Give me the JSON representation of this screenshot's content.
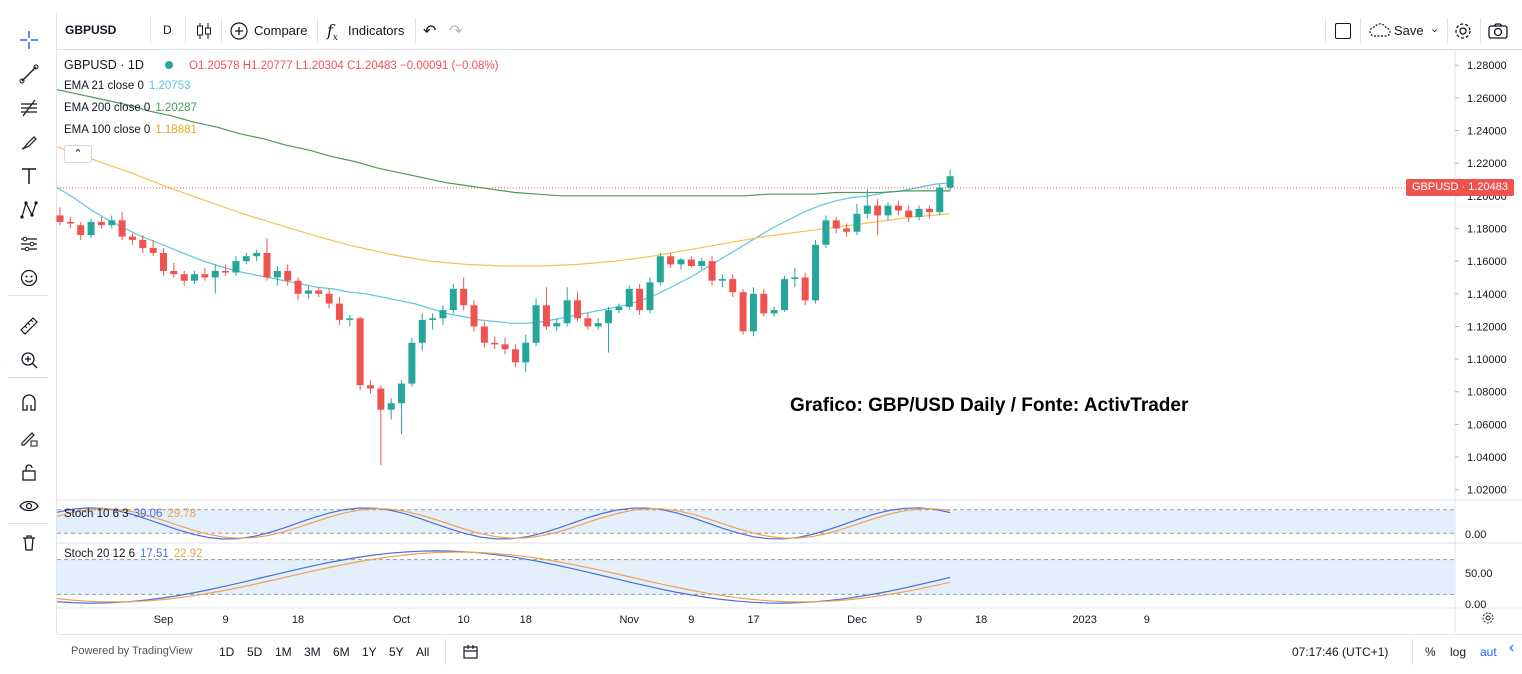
{
  "toolbar": {
    "symbol": "GBPUSD",
    "interval": "D",
    "compare": "Compare",
    "indicators": "Indicators",
    "save": "Save"
  },
  "legend": {
    "title": "GBPUSD · 1D",
    "ohlc": "O1.20578 H1.20777 L1.20304 C1.20483 −0.00091 (−0.08%)",
    "ema21_label": "EMA 21 close 0",
    "ema21_value": "1.20753",
    "ema200_label": "EMA 200 close 0",
    "ema200_value": "1.20287",
    "ema100_label": "EMA 100 close 0",
    "ema100_value": "1.18881",
    "stoch1_label": "Stoch 10 6 3",
    "stoch1_k": "39.06",
    "stoch1_d": "29.78",
    "stoch2_label": "Stoch 20 12 6",
    "stoch2_k": "17.51",
    "stoch2_d": "22.92"
  },
  "annotation": "Grafico: GBP/USD Daily / Fonte: ActivTrader",
  "price_tag": "GBPUSD · 1.20483",
  "bottom": {
    "powered": "Powered by TradingView",
    "ranges": [
      "1D",
      "5D",
      "1M",
      "3M",
      "6M",
      "1Y",
      "5Y",
      "All"
    ],
    "time": "07:17:46 (UTC+1)",
    "percent": "%",
    "log": "log",
    "auto": "aut"
  },
  "colors": {
    "up": "#26a69a",
    "down": "#ef5350",
    "ema21": "#5fc6dc",
    "ema200": "#4a9a5a",
    "ema100": "#f5c250",
    "stoch_k": "#4a6fd8",
    "stoch_d": "#f0a350"
  },
  "chart_data": {
    "type": "candlestick",
    "title": "GBPUSD · 1D",
    "ylim": [
      1.0137,
      1.2893
    ],
    "y_ticks": [
      "1.28000",
      "1.26000",
      "1.24000",
      "1.22000",
      "1.20000",
      "1.18000",
      "1.16000",
      "1.14000",
      "1.12000",
      "1.10000",
      "1.08000",
      "1.06000",
      "1.04000",
      "1.02000"
    ],
    "y_tick_values": [
      1.28,
      1.26,
      1.24,
      1.22,
      1.2,
      1.18,
      1.16,
      1.14,
      1.12,
      1.1,
      1.08,
      1.06,
      1.04,
      1.02
    ],
    "x_ticks": [
      {
        "label": "Sep",
        "index": 10
      },
      {
        "label": "9",
        "index": 16
      },
      {
        "label": "18",
        "index": 23
      },
      {
        "label": "Oct",
        "index": 33
      },
      {
        "label": "10",
        "index": 39
      },
      {
        "label": "18",
        "index": 45
      },
      {
        "label": "Nov",
        "index": 55
      },
      {
        "label": "9",
        "index": 61
      },
      {
        "label": "17",
        "index": 67
      },
      {
        "label": "Dec",
        "index": 77
      },
      {
        "label": "9",
        "index": 83
      },
      {
        "label": "18",
        "index": 89
      },
      {
        "label": "2023",
        "index": 99
      },
      {
        "label": "9",
        "index": 105
      }
    ],
    "candles": [
      {
        "o": 1.188,
        "h": 1.193,
        "l": 1.182,
        "c": 1.184
      },
      {
        "o": 1.184,
        "h": 1.187,
        "l": 1.18,
        "c": 1.183
      },
      {
        "o": 1.182,
        "h": 1.184,
        "l": 1.173,
        "c": 1.176
      },
      {
        "o": 1.176,
        "h": 1.186,
        "l": 1.174,
        "c": 1.184
      },
      {
        "o": 1.184,
        "h": 1.187,
        "l": 1.18,
        "c": 1.182
      },
      {
        "o": 1.182,
        "h": 1.188,
        "l": 1.18,
        "c": 1.185
      },
      {
        "o": 1.185,
        "h": 1.19,
        "l": 1.173,
        "c": 1.175
      },
      {
        "o": 1.175,
        "h": 1.177,
        "l": 1.17,
        "c": 1.173
      },
      {
        "o": 1.173,
        "h": 1.176,
        "l": 1.165,
        "c": 1.168
      },
      {
        "o": 1.168,
        "h": 1.173,
        "l": 1.163,
        "c": 1.165
      },
      {
        "o": 1.165,
        "h": 1.168,
        "l": 1.151,
        "c": 1.154
      },
      {
        "o": 1.154,
        "h": 1.159,
        "l": 1.15,
        "c": 1.152
      },
      {
        "o": 1.152,
        "h": 1.154,
        "l": 1.145,
        "c": 1.148
      },
      {
        "o": 1.148,
        "h": 1.154,
        "l": 1.146,
        "c": 1.152
      },
      {
        "o": 1.152,
        "h": 1.156,
        "l": 1.148,
        "c": 1.15
      },
      {
        "o": 1.15,
        "h": 1.158,
        "l": 1.14,
        "c": 1.154
      },
      {
        "o": 1.154,
        "h": 1.158,
        "l": 1.151,
        "c": 1.153
      },
      {
        "o": 1.153,
        "h": 1.163,
        "l": 1.151,
        "c": 1.16
      },
      {
        "o": 1.16,
        "h": 1.165,
        "l": 1.158,
        "c": 1.163
      },
      {
        "o": 1.163,
        "h": 1.167,
        "l": 1.16,
        "c": 1.165
      },
      {
        "o": 1.165,
        "h": 1.174,
        "l": 1.148,
        "c": 1.15
      },
      {
        "o": 1.15,
        "h": 1.157,
        "l": 1.145,
        "c": 1.154
      },
      {
        "o": 1.154,
        "h": 1.158,
        "l": 1.145,
        "c": 1.148
      },
      {
        "o": 1.148,
        "h": 1.15,
        "l": 1.136,
        "c": 1.14
      },
      {
        "o": 1.14,
        "h": 1.145,
        "l": 1.137,
        "c": 1.142
      },
      {
        "o": 1.142,
        "h": 1.144,
        "l": 1.138,
        "c": 1.14
      },
      {
        "o": 1.14,
        "h": 1.143,
        "l": 1.131,
        "c": 1.134
      },
      {
        "o": 1.134,
        "h": 1.138,
        "l": 1.121,
        "c": 1.124
      },
      {
        "o": 1.124,
        "h": 1.127,
        "l": 1.12,
        "c": 1.125
      },
      {
        "o": 1.125,
        "h": 1.126,
        "l": 1.081,
        "c": 1.084
      },
      {
        "o": 1.084,
        "h": 1.087,
        "l": 1.079,
        "c": 1.082
      },
      {
        "o": 1.082,
        "h": 1.084,
        "l": 1.035,
        "c": 1.069
      },
      {
        "o": 1.069,
        "h": 1.076,
        "l": 1.063,
        "c": 1.073
      },
      {
        "o": 1.073,
        "h": 1.087,
        "l": 1.054,
        "c": 1.085
      },
      {
        "o": 1.085,
        "h": 1.113,
        "l": 1.083,
        "c": 1.11
      },
      {
        "o": 1.11,
        "h": 1.128,
        "l": 1.105,
        "c": 1.124
      },
      {
        "o": 1.124,
        "h": 1.128,
        "l": 1.118,
        "c": 1.125
      },
      {
        "o": 1.125,
        "h": 1.133,
        "l": 1.121,
        "c": 1.13
      },
      {
        "o": 1.13,
        "h": 1.146,
        "l": 1.128,
        "c": 1.143
      },
      {
        "o": 1.143,
        "h": 1.15,
        "l": 1.13,
        "c": 1.133
      },
      {
        "o": 1.133,
        "h": 1.136,
        "l": 1.117,
        "c": 1.12
      },
      {
        "o": 1.12,
        "h": 1.123,
        "l": 1.107,
        "c": 1.11
      },
      {
        "o": 1.11,
        "h": 1.114,
        "l": 1.106,
        "c": 1.109
      },
      {
        "o": 1.109,
        "h": 1.113,
        "l": 1.103,
        "c": 1.106
      },
      {
        "o": 1.106,
        "h": 1.109,
        "l": 1.095,
        "c": 1.098
      },
      {
        "o": 1.098,
        "h": 1.115,
        "l": 1.092,
        "c": 1.11
      },
      {
        "o": 1.11,
        "h": 1.137,
        "l": 1.108,
        "c": 1.133
      },
      {
        "o": 1.133,
        "h": 1.144,
        "l": 1.118,
        "c": 1.12
      },
      {
        "o": 1.12,
        "h": 1.125,
        "l": 1.117,
        "c": 1.122
      },
      {
        "o": 1.122,
        "h": 1.144,
        "l": 1.12,
        "c": 1.136
      },
      {
        "o": 1.136,
        "h": 1.141,
        "l": 1.123,
        "c": 1.125
      },
      {
        "o": 1.125,
        "h": 1.128,
        "l": 1.118,
        "c": 1.12
      },
      {
        "o": 1.12,
        "h": 1.125,
        "l": 1.118,
        "c": 1.122
      },
      {
        "o": 1.122,
        "h": 1.132,
        "l": 1.104,
        "c": 1.13
      },
      {
        "o": 1.13,
        "h": 1.134,
        "l": 1.128,
        "c": 1.132
      },
      {
        "o": 1.132,
        "h": 1.145,
        "l": 1.13,
        "c": 1.143
      },
      {
        "o": 1.143,
        "h": 1.146,
        "l": 1.127,
        "c": 1.13
      },
      {
        "o": 1.13,
        "h": 1.15,
        "l": 1.128,
        "c": 1.147
      },
      {
        "o": 1.147,
        "h": 1.165,
        "l": 1.145,
        "c": 1.163
      },
      {
        "o": 1.163,
        "h": 1.165,
        "l": 1.156,
        "c": 1.158
      },
      {
        "o": 1.158,
        "h": 1.162,
        "l": 1.155,
        "c": 1.161
      },
      {
        "o": 1.161,
        "h": 1.163,
        "l": 1.156,
        "c": 1.157
      },
      {
        "o": 1.157,
        "h": 1.162,
        "l": 1.155,
        "c": 1.16
      },
      {
        "o": 1.16,
        "h": 1.163,
        "l": 1.145,
        "c": 1.148
      },
      {
        "o": 1.148,
        "h": 1.152,
        "l": 1.144,
        "c": 1.149
      },
      {
        "o": 1.149,
        "h": 1.152,
        "l": 1.138,
        "c": 1.141
      },
      {
        "o": 1.141,
        "h": 1.143,
        "l": 1.115,
        "c": 1.117
      },
      {
        "o": 1.117,
        "h": 1.144,
        "l": 1.114,
        "c": 1.14
      },
      {
        "o": 1.14,
        "h": 1.143,
        "l": 1.126,
        "c": 1.128
      },
      {
        "o": 1.128,
        "h": 1.132,
        "l": 1.126,
        "c": 1.13
      },
      {
        "o": 1.13,
        "h": 1.151,
        "l": 1.129,
        "c": 1.149
      },
      {
        "o": 1.149,
        "h": 1.156,
        "l": 1.144,
        "c": 1.15
      },
      {
        "o": 1.15,
        "h": 1.153,
        "l": 1.133,
        "c": 1.136
      },
      {
        "o": 1.136,
        "h": 1.173,
        "l": 1.134,
        "c": 1.17
      },
      {
        "o": 1.17,
        "h": 1.188,
        "l": 1.168,
        "c": 1.185
      },
      {
        "o": 1.185,
        "h": 1.187,
        "l": 1.177,
        "c": 1.18
      },
      {
        "o": 1.18,
        "h": 1.183,
        "l": 1.175,
        "c": 1.178
      },
      {
        "o": 1.178,
        "h": 1.195,
        "l": 1.176,
        "c": 1.189
      },
      {
        "o": 1.189,
        "h": 1.204,
        "l": 1.186,
        "c": 1.194
      },
      {
        "o": 1.194,
        "h": 1.198,
        "l": 1.176,
        "c": 1.188
      },
      {
        "o": 1.188,
        "h": 1.196,
        "l": 1.185,
        "c": 1.194
      },
      {
        "o": 1.194,
        "h": 1.197,
        "l": 1.188,
        "c": 1.191
      },
      {
        "o": 1.191,
        "h": 1.194,
        "l": 1.184,
        "c": 1.187
      },
      {
        "o": 1.187,
        "h": 1.194,
        "l": 1.185,
        "c": 1.192
      },
      {
        "o": 1.192,
        "h": 1.194,
        "l": 1.186,
        "c": 1.19
      },
      {
        "o": 1.19,
        "h": 1.207,
        "l": 1.188,
        "c": 1.205
      },
      {
        "o": 1.205,
        "h": 1.216,
        "l": 1.203,
        "c": 1.212
      }
    ],
    "series": [
      {
        "name": "EMA 21 close 0",
        "values": [
          1.205,
          1.199,
          1.192,
          1.186,
          1.181,
          1.176,
          1.172,
          1.168,
          1.164,
          1.16,
          1.157,
          1.154,
          1.152,
          1.15,
          1.148,
          1.146,
          1.144,
          1.143,
          1.141,
          1.14,
          1.138,
          1.136,
          1.134,
          1.131,
          1.128,
          1.126,
          1.124,
          1.123,
          1.122,
          1.122,
          1.123,
          1.125,
          1.127,
          1.129,
          1.131,
          1.133,
          1.136,
          1.14,
          1.145,
          1.15,
          1.156,
          1.162,
          1.168,
          1.174,
          1.18,
          1.185,
          1.19,
          1.194,
          1.197,
          1.199,
          1.2,
          1.202,
          1.203,
          1.205,
          1.207,
          1.208
        ]
      },
      {
        "name": "EMA 200 close 0",
        "values": [
          1.265,
          1.262,
          1.259,
          1.256,
          1.252,
          1.249,
          1.245,
          1.242,
          1.238,
          1.235,
          1.231,
          1.228,
          1.224,
          1.221,
          1.217,
          1.214,
          1.211,
          1.208,
          1.206,
          1.204,
          1.202,
          1.201,
          1.2,
          1.2,
          1.2,
          1.2,
          1.2,
          1.2,
          1.2,
          1.2,
          1.2,
          1.201,
          1.201,
          1.201,
          1.202,
          1.202,
          1.202,
          1.203,
          1.203,
          1.203
        ]
      },
      {
        "name": "EMA 100 close 0",
        "values": [
          1.23,
          1.222,
          1.214,
          1.205,
          1.197,
          1.189,
          1.182,
          1.175,
          1.169,
          1.164,
          1.16,
          1.158,
          1.157,
          1.157,
          1.158,
          1.16,
          1.163,
          1.167,
          1.171,
          1.175,
          1.178,
          1.181,
          1.184,
          1.187,
          1.189
        ]
      }
    ],
    "indicators": [
      {
        "name": "Stoch 10 6 3",
        "k": 39.06,
        "d": 29.78,
        "levels": [
          80,
          20
        ]
      },
      {
        "name": "Stoch 20 12 6",
        "k": 17.51,
        "d": 22.92,
        "levels": [
          80,
          20
        ]
      }
    ],
    "indicator_y_ticks": [
      "0.00",
      "50.00",
      "0.00"
    ],
    "last_price": 1.20483
  }
}
